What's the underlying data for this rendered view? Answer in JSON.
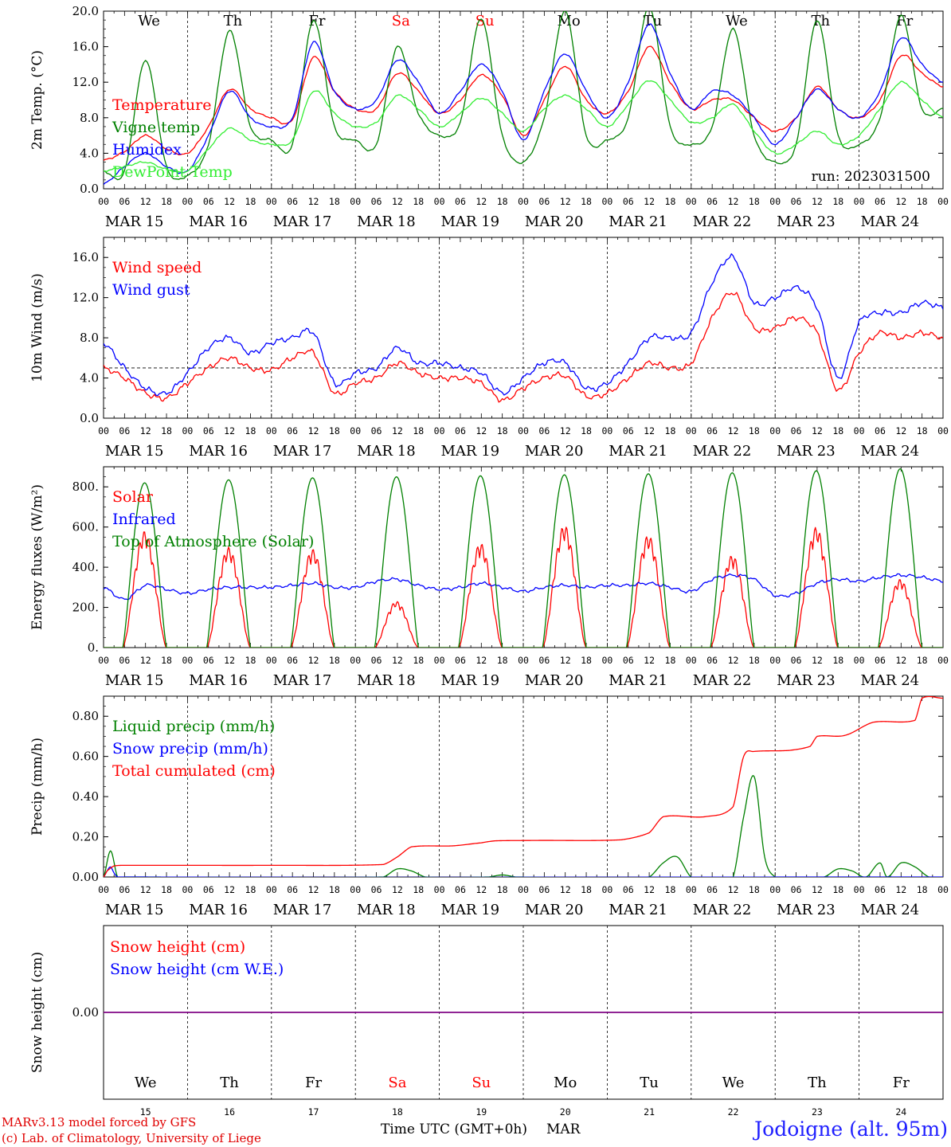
{
  "page": {
    "run_label": "run: 2023031500",
    "credit_line_1": "MARv3.13 model forced by GFS",
    "credit_line_2": "(c) Lab. of Climatology, University of Liege",
    "station": "Jodoigne (alt. 95m)",
    "time_axis_label": "Time UTC (GMT+0h)",
    "month_label": "MAR"
  },
  "days": {
    "abbrev": [
      "We",
      "Th",
      "Fr",
      "Sa",
      "Su",
      "Mo",
      "Tu",
      "We",
      "Th",
      "Fr"
    ],
    "dates": [
      "MAR 15",
      "MAR 16",
      "MAR 17",
      "MAR 18",
      "MAR 19",
      "MAR 20",
      "MAR 21",
      "MAR 22",
      "MAR 23",
      "MAR 24"
    ],
    "numbers": [
      "15",
      "16",
      "17",
      "18",
      "19",
      "20",
      "21",
      "22",
      "23",
      "24"
    ],
    "weekend_color": "#ff0000",
    "weekday_color": "#000000",
    "hour_ticks": [
      "00",
      "06",
      "12",
      "18"
    ],
    "final_hour": "00"
  },
  "colors": {
    "red": "#ff0000",
    "dark_green": "#008000",
    "blue": "#0000ff",
    "light_green": "#33ee33",
    "purple": "#800080"
  },
  "chart_data": [
    {
      "type": "line",
      "ylabel": "2m Temp. (°C)",
      "ylim": [
        0,
        20
      ],
      "yticks": [
        "0.0",
        "4.0",
        "8.0",
        "12.0",
        "16.0",
        "20.0"
      ],
      "x_unit": "hours since 2023-03-15 00 UTC",
      "xlim": [
        0,
        240
      ],
      "series": [
        {
          "name": "Temperature",
          "color": "#ff0000",
          "x": [
            0,
            6,
            12,
            18,
            24,
            30,
            36,
            42,
            48,
            54,
            60,
            66,
            72,
            78,
            84,
            90,
            96,
            102,
            108,
            114,
            120,
            126,
            132,
            138,
            144,
            150,
            156,
            162,
            168,
            174,
            180,
            186,
            192,
            198,
            204,
            210,
            216,
            222,
            228,
            234,
            240
          ],
          "values": [
            3.2,
            4.2,
            6.0,
            4.5,
            4.0,
            7.0,
            11.2,
            9.0,
            8.0,
            7.8,
            14.8,
            11.0,
            9.0,
            9.0,
            13.0,
            11.0,
            8.5,
            10.0,
            12.8,
            10.5,
            6.0,
            10.0,
            13.8,
            10.0,
            8.5,
            11.0,
            16.0,
            12.0,
            9.0,
            10.0,
            10.0,
            8.0,
            6.5,
            8.0,
            11.5,
            9.0,
            8.0,
            10.0,
            15.0,
            13.0,
            11.5
          ]
        },
        {
          "name": "Vigne temp",
          "color": "#008000",
          "x": [
            0,
            6,
            12,
            18,
            24,
            30,
            36,
            42,
            48,
            54,
            60,
            66,
            72,
            78,
            84,
            90,
            96,
            102,
            108,
            114,
            120,
            126,
            132,
            138,
            144,
            150,
            156,
            162,
            168,
            174,
            180,
            186,
            192,
            198,
            204,
            210,
            216,
            222,
            228,
            234,
            240
          ],
          "values": [
            2.0,
            2.0,
            14.5,
            2.5,
            1.5,
            5.0,
            17.8,
            7.0,
            5.5,
            5.0,
            19.0,
            7.0,
            5.5,
            5.0,
            16.0,
            8.5,
            6.0,
            7.5,
            19.2,
            6.0,
            3.0,
            8.0,
            20.0,
            6.0,
            5.5,
            8.0,
            20.5,
            7.0,
            5.0,
            7.0,
            18.0,
            6.0,
            3.0,
            5.0,
            19.0,
            6.0,
            5.0,
            8.0,
            19.5,
            9.0,
            9.0
          ]
        },
        {
          "name": "Humidex",
          "color": "#0000ff",
          "x": [
            0,
            6,
            12,
            18,
            24,
            30,
            36,
            42,
            48,
            54,
            60,
            66,
            72,
            78,
            84,
            90,
            96,
            102,
            108,
            114,
            120,
            126,
            132,
            138,
            144,
            150,
            156,
            162,
            168,
            174,
            180,
            186,
            192,
            198,
            204,
            210,
            216,
            222,
            228,
            234,
            240
          ],
          "values": [
            0.5,
            2.5,
            4.0,
            2.5,
            2.0,
            6.0,
            11.0,
            8.0,
            7.0,
            8.0,
            16.5,
            11.0,
            9.0,
            10.0,
            14.5,
            12.0,
            8.5,
            11.0,
            14.0,
            11.0,
            5.5,
            11.0,
            15.2,
            11.0,
            8.0,
            12.0,
            18.5,
            13.0,
            9.0,
            11.0,
            10.5,
            8.0,
            5.0,
            8.0,
            11.2,
            9.0,
            8.0,
            11.0,
            17.0,
            14.0,
            12.0
          ]
        },
        {
          "name": "DewPoint Temp",
          "color": "#33ee33",
          "x": [
            0,
            6,
            12,
            18,
            24,
            30,
            36,
            42,
            48,
            54,
            60,
            66,
            72,
            78,
            84,
            90,
            96,
            102,
            108,
            114,
            120,
            126,
            132,
            138,
            144,
            150,
            156,
            162,
            168,
            174,
            180,
            186,
            192,
            198,
            204,
            210,
            216,
            222,
            228,
            234,
            240
          ],
          "values": [
            2.0,
            2.5,
            3.0,
            2.2,
            2.0,
            4.5,
            6.8,
            5.5,
            5.0,
            5.5,
            11.0,
            8.5,
            7.0,
            7.5,
            10.5,
            9.0,
            7.0,
            8.5,
            10.2,
            8.5,
            6.5,
            9.0,
            10.5,
            9.0,
            7.0,
            9.5,
            12.2,
            10.0,
            7.5,
            8.0,
            9.5,
            6.5,
            4.0,
            5.0,
            6.5,
            5.0,
            6.0,
            9.0,
            12.0,
            10.0,
            8.0
          ]
        }
      ],
      "annotation": "run: 2023031500"
    },
    {
      "type": "line",
      "ylabel": "10m Wind (m/s)",
      "ylim": [
        0,
        18
      ],
      "yticks": [
        "0.0",
        "4.0",
        "8.0",
        "12.0",
        "16.0"
      ],
      "reference_line": 5,
      "x_unit": "hours since 2023-03-15 00 UTC",
      "xlim": [
        0,
        240
      ],
      "series": [
        {
          "name": "Wind speed",
          "color": "#ff0000",
          "x": [
            0,
            6,
            12,
            18,
            24,
            30,
            36,
            42,
            48,
            54,
            60,
            66,
            72,
            78,
            84,
            90,
            96,
            102,
            108,
            114,
            120,
            126,
            132,
            138,
            144,
            150,
            156,
            162,
            168,
            174,
            180,
            186,
            192,
            198,
            204,
            210,
            216,
            222,
            228,
            234,
            240
          ],
          "values": [
            5.0,
            4.0,
            2.5,
            2.0,
            3.5,
            5.0,
            6.0,
            5.0,
            4.8,
            6.0,
            6.5,
            2.5,
            3.5,
            4.0,
            5.5,
            4.5,
            4.0,
            4.0,
            3.5,
            1.8,
            3.0,
            4.0,
            4.2,
            2.2,
            2.5,
            4.0,
            5.5,
            5.0,
            5.5,
            10.0,
            12.5,
            9.0,
            9.0,
            10.0,
            8.5,
            2.8,
            6.5,
            8.5,
            8.0,
            8.5,
            8.0
          ]
        },
        {
          "name": "Wind gust",
          "color": "#0000ff",
          "x": [
            0,
            6,
            12,
            18,
            24,
            30,
            36,
            42,
            48,
            54,
            60,
            66,
            72,
            78,
            84,
            90,
            96,
            102,
            108,
            114,
            120,
            126,
            132,
            138,
            144,
            150,
            156,
            162,
            168,
            174,
            180,
            186,
            192,
            198,
            204,
            210,
            216,
            222,
            228,
            234,
            240
          ],
          "values": [
            7.5,
            5.0,
            3.0,
            2.5,
            4.5,
            7.0,
            8.0,
            6.5,
            7.5,
            8.0,
            8.5,
            3.5,
            4.5,
            5.0,
            7.0,
            5.5,
            5.5,
            5.0,
            4.5,
            2.5,
            4.0,
            5.5,
            5.5,
            3.0,
            3.5,
            5.5,
            8.0,
            8.0,
            8.5,
            13.5,
            16.0,
            11.5,
            12.0,
            13.0,
            11.0,
            4.0,
            9.5,
            10.5,
            10.5,
            11.5,
            11.0
          ]
        }
      ]
    },
    {
      "type": "line",
      "ylabel": "Energy fluxes (W/m²)",
      "ylim": [
        0,
        900
      ],
      "yticks": [
        "0.",
        "200.",
        "400.",
        "600.",
        "800."
      ],
      "x_unit": "hours since 2023-03-15 00 UTC",
      "xlim": [
        0,
        240
      ],
      "series": [
        {
          "name": "Solar",
          "color": "#ff0000",
          "daily_peak": [
            580,
            500,
            490,
            230,
            520,
            610,
            560,
            460,
            600,
            340
          ]
        },
        {
          "name": "Infrared",
          "color": "#0000ff",
          "x": [
            0,
            6,
            12,
            18,
            24,
            30,
            36,
            42,
            48,
            54,
            60,
            66,
            72,
            78,
            84,
            90,
            96,
            102,
            108,
            114,
            120,
            126,
            132,
            138,
            144,
            150,
            156,
            162,
            168,
            174,
            180,
            186,
            192,
            198,
            204,
            210,
            216,
            222,
            228,
            234,
            240
          ],
          "values": [
            300,
            240,
            310,
            290,
            270,
            290,
            300,
            300,
            300,
            310,
            320,
            300,
            300,
            330,
            340,
            310,
            290,
            300,
            320,
            300,
            280,
            300,
            310,
            300,
            310,
            310,
            320,
            300,
            280,
            340,
            360,
            340,
            260,
            270,
            320,
            340,
            330,
            350,
            360,
            350,
            330
          ]
        },
        {
          "name": "Top of Atmosphere (Solar)",
          "color": "#008000",
          "daily_peak": [
            820,
            835,
            845,
            850,
            855,
            860,
            865,
            870,
            880,
            890
          ]
        }
      ]
    },
    {
      "type": "line",
      "ylabel": "Precip (mm/h)",
      "ylim": [
        0,
        0.9
      ],
      "yticks": [
        "0.00",
        "0.20",
        "0.40",
        "0.60",
        "0.80"
      ],
      "x_unit": "hours since 2023-03-15 00 UTC",
      "xlim": [
        0,
        240
      ],
      "series": [
        {
          "name": "Liquid precip (mm/h)",
          "color": "#008000",
          "x": [
            0,
            2,
            4,
            6,
            80,
            84,
            88,
            92,
            110,
            114,
            118,
            156,
            160,
            164,
            168,
            180,
            183,
            186,
            189,
            192,
            206,
            210,
            214,
            218,
            222,
            224,
            228,
            232,
            236
          ],
          "values": [
            0,
            0.13,
            0,
            0,
            0,
            0.04,
            0.03,
            0,
            0,
            0.01,
            0,
            0,
            0.07,
            0.1,
            0,
            0,
            0.3,
            0.5,
            0.1,
            0,
            0,
            0.04,
            0.03,
            0,
            0.07,
            0,
            0.07,
            0.05,
            0
          ]
        },
        {
          "name": "Snow precip (mm/h)",
          "color": "#0000ff",
          "x": [
            0,
            1,
            2,
            3,
            4,
            240
          ],
          "values": [
            0,
            0.03,
            0.05,
            0.02,
            0,
            0
          ]
        },
        {
          "name": "Total cumulated (cm)",
          "color": "#ff0000",
          "x": [
            0,
            1,
            3,
            8,
            48,
            80,
            84,
            88,
            100,
            108,
            112,
            124,
            148,
            156,
            160,
            172,
            180,
            183,
            186,
            196,
            202,
            204,
            212,
            220,
            232,
            234,
            240
          ],
          "values": [
            0,
            0.03,
            0.055,
            0.058,
            0.058,
            0.062,
            0.1,
            0.15,
            0.155,
            0.17,
            0.18,
            0.182,
            0.185,
            0.22,
            0.3,
            0.3,
            0.35,
            0.6,
            0.625,
            0.63,
            0.65,
            0.7,
            0.705,
            0.77,
            0.78,
            0.89,
            0.89
          ]
        }
      ]
    },
    {
      "type": "line",
      "ylabel": "Snow height (cm)",
      "yticks": [
        "0.00"
      ],
      "x_unit": "hours since 2023-03-15 00 UTC",
      "xlim": [
        0,
        240
      ],
      "series": [
        {
          "name": "Snow height (cm)",
          "color": "#ff0000",
          "x": [
            0,
            240
          ],
          "values": [
            0,
            0
          ]
        },
        {
          "name": "Snow height (cm W.E.)",
          "color": "#0000ff",
          "x": [
            0,
            240
          ],
          "values": [
            0,
            0
          ]
        }
      ]
    }
  ]
}
